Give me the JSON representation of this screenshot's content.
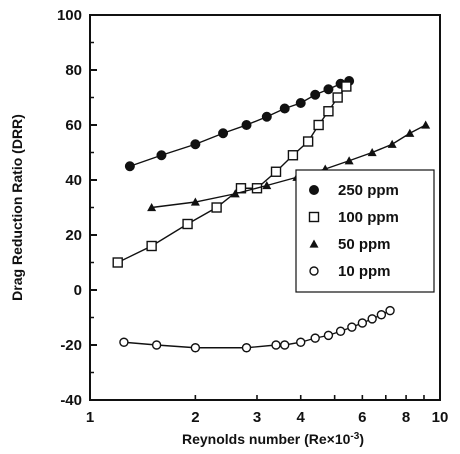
{
  "chart_data": {
    "type": "line",
    "title": "",
    "xlabel": "Reynolds number (Re×10",
    "xlabel_sup": "-3",
    "xlabel_close": ")",
    "ylabel": "Drag Reduction Ratio (DRR)",
    "x_scale": "log",
    "xlim": [
      1,
      10
    ],
    "ylim": [
      -40,
      100
    ],
    "x_ticks": [
      {
        "value": 1,
        "label": "1"
      },
      {
        "value": 2,
        "label": "2"
      },
      {
        "value": 3,
        "label": "3"
      },
      {
        "value": 4,
        "label": "4"
      },
      {
        "value": 6,
        "label": "6"
      },
      {
        "value": 8,
        "label": "8"
      },
      {
        "value": 10,
        "label": "10"
      }
    ],
    "y_ticks": [
      {
        "value": -40,
        "label": "-40"
      },
      {
        "value": -20,
        "label": "-20"
      },
      {
        "value": 0,
        "label": "0"
      },
      {
        "value": 20,
        "label": "20"
      },
      {
        "value": 40,
        "label": "40"
      },
      {
        "value": 60,
        "label": "60"
      },
      {
        "value": 80,
        "label": "80"
      },
      {
        "value": 100,
        "label": "100"
      }
    ],
    "grid": false,
    "legend_position": "center-right",
    "series": [
      {
        "name": "250 ppm",
        "marker": "filled-circle",
        "x": [
          1.3,
          1.6,
          2.0,
          2.4,
          2.8,
          3.2,
          3.6,
          4.0,
          4.4,
          4.8,
          5.2,
          5.5
        ],
        "y": [
          45,
          49,
          53,
          57,
          60,
          63,
          66,
          68,
          71,
          73,
          75,
          76
        ]
      },
      {
        "name": "100 ppm",
        "marker": "open-square",
        "x": [
          1.2,
          1.5,
          1.9,
          2.3,
          2.7,
          3.0,
          3.4,
          3.8,
          4.2,
          4.5,
          4.8,
          5.1,
          5.4
        ],
        "y": [
          10,
          16,
          24,
          30,
          37,
          37,
          43,
          49,
          54,
          60,
          65,
          70,
          74
        ]
      },
      {
        "name": "50 ppm",
        "marker": "filled-triangle",
        "x": [
          1.5,
          2.0,
          2.6,
          3.2,
          3.9,
          4.7,
          5.5,
          6.4,
          7.3,
          8.2,
          9.1
        ],
        "y": [
          30,
          32,
          35,
          38,
          41,
          44,
          47,
          50,
          53,
          57,
          60
        ]
      },
      {
        "name": "10 ppm",
        "marker": "open-circle",
        "x": [
          1.25,
          1.55,
          2.0,
          2.8,
          3.4,
          3.6,
          4.0,
          4.4,
          4.8,
          5.2,
          5.6,
          6.0,
          6.4,
          6.8,
          7.2
        ],
        "y": [
          -19,
          -20,
          -21,
          -21,
          -20,
          -20,
          -19,
          -17.5,
          -16.5,
          -15,
          -13.5,
          -12,
          -10.5,
          -9,
          -7.5
        ]
      }
    ]
  }
}
